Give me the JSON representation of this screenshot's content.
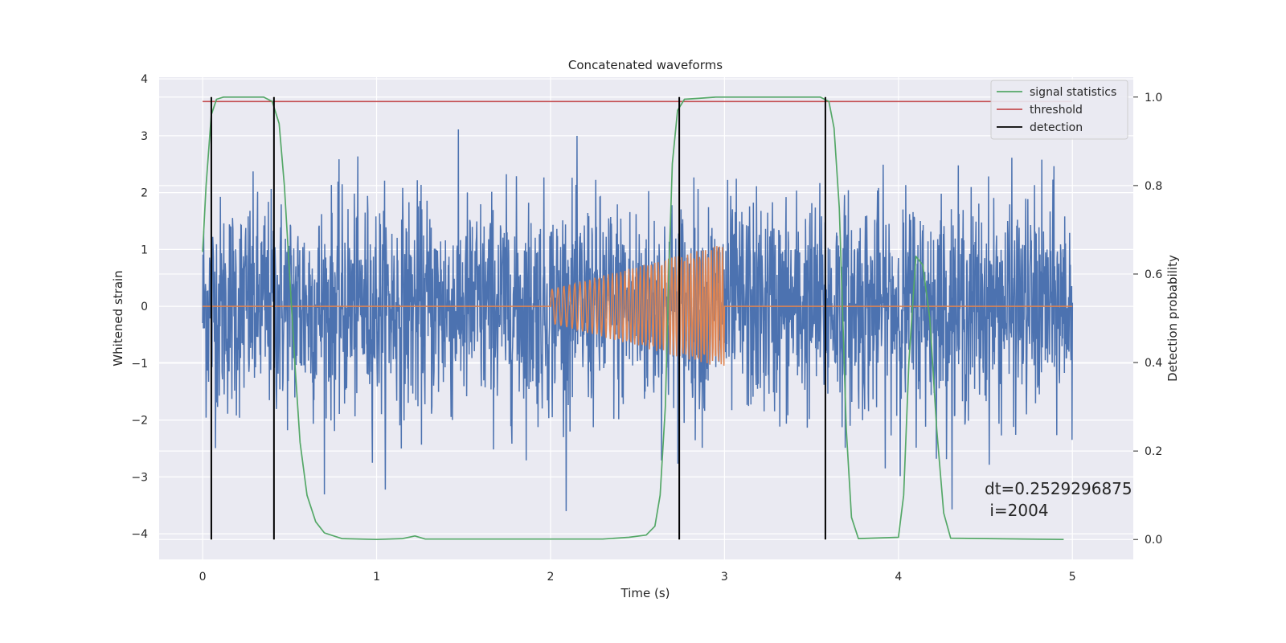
{
  "chart_data": {
    "type": "line",
    "title": "Concatenated waveforms",
    "xlabel": "Time (s)",
    "ylabel": "Whitened strain",
    "y2label": "Detection probability",
    "xlim": [
      -0.25,
      5.35
    ],
    "ylim": [
      -4.45,
      4.03
    ],
    "y2lim": [
      -0.045,
      1.045
    ],
    "xticks": [
      0,
      1,
      2,
      3,
      4,
      5
    ],
    "yticks": [
      -4,
      -3,
      -2,
      -1,
      0,
      1,
      2,
      3,
      4
    ],
    "y2ticks": [
      0.0,
      0.2,
      0.4,
      0.6,
      0.8,
      1.0
    ],
    "xtick_labels": [
      "0",
      "1",
      "2",
      "3",
      "4",
      "5"
    ],
    "ytick_labels": [
      "−4",
      "−3",
      "−2",
      "−1",
      "0",
      "1",
      "2",
      "3",
      "4"
    ],
    "y2tick_labels": [
      "0.0",
      "0.2",
      "0.4",
      "0.6",
      "0.8",
      "1.0"
    ],
    "grid": true,
    "legend_placement": "top-right",
    "series": [
      {
        "name": "",
        "axis": "left",
        "color": "#4c72b0",
        "kind": "noise",
        "description_values": {
          "t_start": 0,
          "t_end": 5,
          "core_amplitude": 1.0,
          "peak_amplitude": 3.6
        }
      },
      {
        "name": "",
        "axis": "left",
        "color": "#dd8452",
        "kind": "chirp",
        "t_start": 2.0,
        "t_end": 3.0,
        "amp_start": 0.3,
        "amp_end": 1.1
      },
      {
        "name": "signal statistics",
        "axis": "right",
        "color": "#55a868",
        "points": [
          [
            0.0,
            0.65
          ],
          [
            0.02,
            0.8
          ],
          [
            0.05,
            0.96
          ],
          [
            0.08,
            0.995
          ],
          [
            0.12,
            1.0
          ],
          [
            0.35,
            1.0
          ],
          [
            0.4,
            0.99
          ],
          [
            0.44,
            0.94
          ],
          [
            0.47,
            0.8
          ],
          [
            0.5,
            0.6
          ],
          [
            0.53,
            0.4
          ],
          [
            0.56,
            0.22
          ],
          [
            0.6,
            0.1
          ],
          [
            0.65,
            0.04
          ],
          [
            0.7,
            0.015
          ],
          [
            0.8,
            0.002
          ],
          [
            1.0,
            0.0
          ],
          [
            1.15,
            0.002
          ],
          [
            1.22,
            0.008
          ],
          [
            1.28,
            0.001
          ],
          [
            2.3,
            0.001
          ],
          [
            2.45,
            0.005
          ],
          [
            2.55,
            0.01
          ],
          [
            2.6,
            0.03
          ],
          [
            2.63,
            0.1
          ],
          [
            2.66,
            0.3
          ],
          [
            2.68,
            0.6
          ],
          [
            2.7,
            0.85
          ],
          [
            2.73,
            0.97
          ],
          [
            2.77,
            0.995
          ],
          [
            2.85,
            0.997
          ],
          [
            2.95,
            1.0
          ],
          [
            3.55,
            1.0
          ],
          [
            3.6,
            0.99
          ],
          [
            3.63,
            0.93
          ],
          [
            3.66,
            0.75
          ],
          [
            3.68,
            0.5
          ],
          [
            3.7,
            0.25
          ],
          [
            3.73,
            0.05
          ],
          [
            3.77,
            0.002
          ],
          [
            4.0,
            0.005
          ],
          [
            4.03,
            0.1
          ],
          [
            4.06,
            0.4
          ],
          [
            4.1,
            0.64
          ],
          [
            4.14,
            0.62
          ],
          [
            4.18,
            0.5
          ],
          [
            4.22,
            0.25
          ],
          [
            4.26,
            0.06
          ],
          [
            4.3,
            0.003
          ],
          [
            4.95,
            0.0
          ]
        ]
      },
      {
        "name": "threshold",
        "axis": "right",
        "color": "#c44e52",
        "points": [
          [
            0.0,
            0.99
          ],
          [
            5.0,
            0.99
          ]
        ]
      },
      {
        "name": "detection",
        "axis": "right",
        "color": "#000000",
        "kind": "vlines",
        "x": [
          0.05,
          0.41,
          2.74,
          3.58
        ],
        "y_range": [
          0.0,
          1.0
        ]
      }
    ],
    "annotation": {
      "line1": "dt=0.2529296875",
      "line2": " i=2004"
    }
  }
}
